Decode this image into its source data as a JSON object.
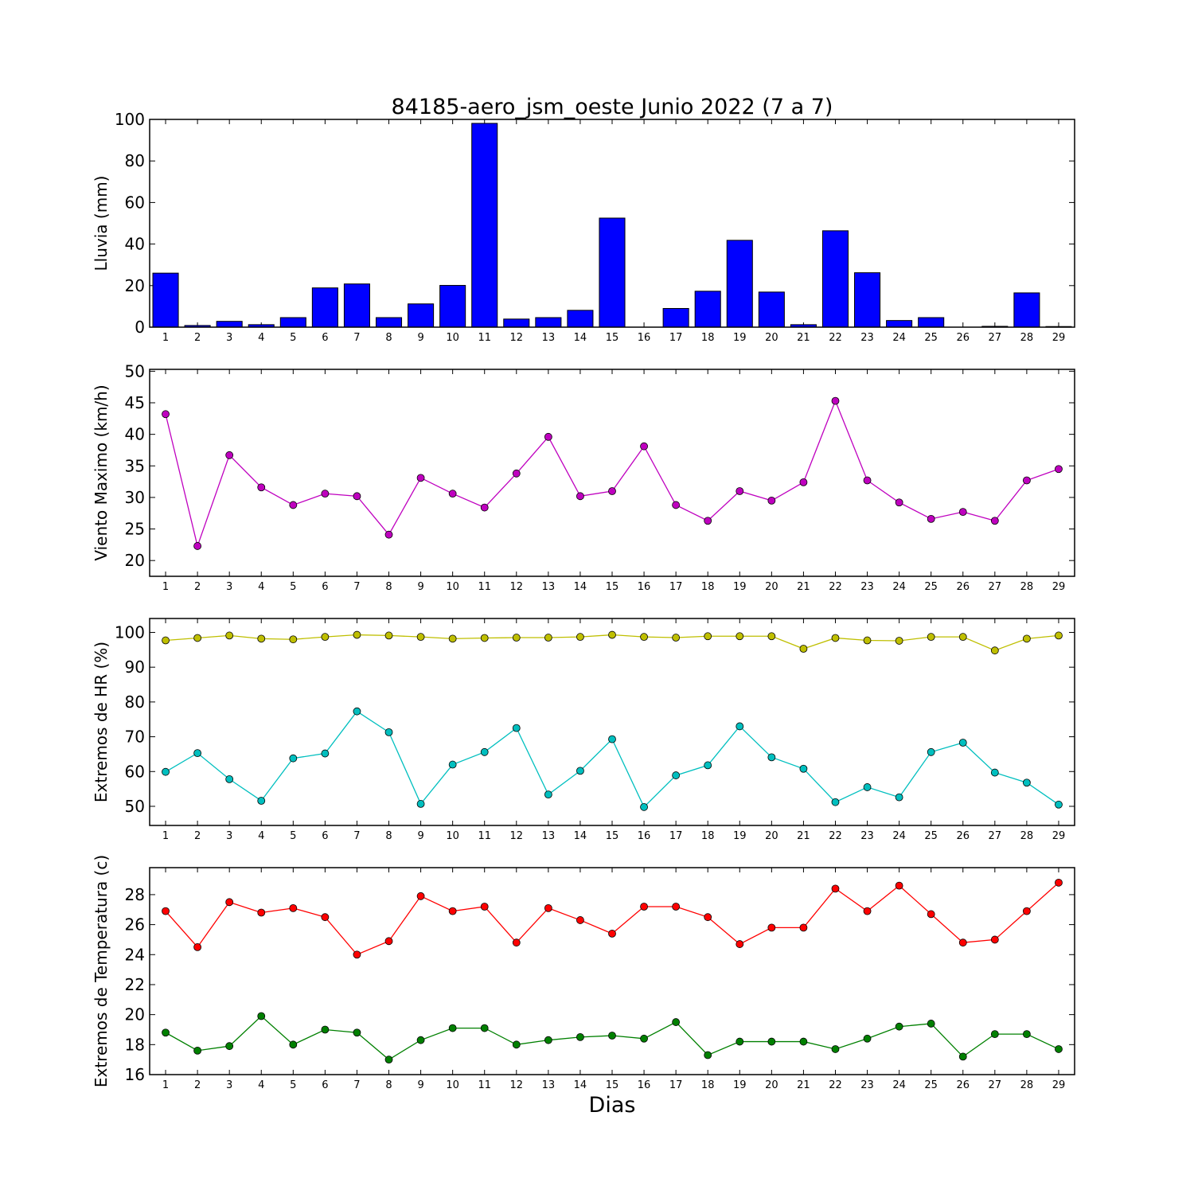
{
  "figure": {
    "title": "84185-aero_jsm_oeste Junio 2022  (7 a 7)",
    "xlabel": "Dias"
  },
  "chart_data": [
    {
      "type": "bar",
      "ylabel": "Lluvia (mm)",
      "ylim": [
        0,
        100
      ],
      "yticks": [
        0,
        20,
        40,
        60,
        80,
        100
      ],
      "categories": [
        1,
        2,
        3,
        4,
        5,
        6,
        7,
        8,
        9,
        10,
        11,
        12,
        13,
        14,
        15,
        16,
        17,
        18,
        19,
        20,
        21,
        22,
        23,
        24,
        25,
        26,
        27,
        28,
        29
      ],
      "series": [
        {
          "color": "#0000ff",
          "values": [
            26,
            0.8,
            2.8,
            1.2,
            4.6,
            18.9,
            20.8,
            4.6,
            11.2,
            20.1,
            98.1,
            3.9,
            4.6,
            8.1,
            52.5,
            0,
            9,
            17.3,
            41.8,
            16.9,
            1.2,
            46.4,
            26.2,
            3.2,
            4.6,
            0,
            0.4,
            16.5,
            0.3
          ]
        }
      ]
    },
    {
      "type": "line",
      "ylabel": "Viento Maximo (km/h)",
      "ylim": [
        17.5,
        50.3
      ],
      "yticks": [
        20,
        25,
        30,
        35,
        40,
        45,
        50
      ],
      "x": [
        1,
        2,
        3,
        4,
        5,
        6,
        7,
        8,
        9,
        10,
        11,
        12,
        13,
        14,
        15,
        16,
        17,
        18,
        19,
        20,
        21,
        22,
        23,
        24,
        25,
        26,
        27,
        28,
        29
      ],
      "series": [
        {
          "color": "#bf00bf",
          "values": [
            43.2,
            22.3,
            36.7,
            31.6,
            28.8,
            30.6,
            30.2,
            24.1,
            33.1,
            30.6,
            28.4,
            33.8,
            39.6,
            30.2,
            31,
            38.1,
            28.8,
            26.3,
            31,
            29.5,
            32.4,
            45.3,
            32.7,
            29.2,
            26.6,
            27.7,
            26.3,
            32.7,
            34.5
          ]
        }
      ]
    },
    {
      "type": "line",
      "ylabel": "Extremos de HR (%)",
      "ylim": [
        44.5,
        104
      ],
      "yticks": [
        50,
        60,
        70,
        80,
        90,
        100
      ],
      "x": [
        1,
        2,
        3,
        4,
        5,
        6,
        7,
        8,
        9,
        10,
        11,
        12,
        13,
        14,
        15,
        16,
        17,
        18,
        19,
        20,
        21,
        22,
        23,
        24,
        25,
        26,
        27,
        28,
        29
      ],
      "series": [
        {
          "color": "#bfbf00",
          "values": [
            97.7,
            98.4,
            99.1,
            98.2,
            98,
            98.7,
            99.3,
            99.1,
            98.7,
            98.2,
            98.4,
            98.5,
            98.5,
            98.7,
            99.3,
            98.7,
            98.5,
            98.9,
            98.9,
            98.9,
            95.3,
            98.4,
            97.7,
            97.6,
            98.7,
            98.7,
            94.8,
            98.2,
            99.1
          ]
        },
        {
          "color": "#00bfbf",
          "values": [
            59.9,
            65.3,
            57.8,
            51.6,
            63.8,
            65.2,
            77.3,
            71.3,
            50.7,
            62,
            65.6,
            72.5,
            53.4,
            60.2,
            69.3,
            49.8,
            58.9,
            61.8,
            73,
            64.1,
            60.8,
            51.2,
            55.5,
            52.6,
            65.6,
            68.3,
            59.7,
            56.8,
            50.5
          ]
        }
      ]
    },
    {
      "type": "line",
      "ylabel": "Extremos de Temperatura (c)",
      "ylim": [
        16,
        29.8
      ],
      "yticks": [
        16,
        18,
        20,
        22,
        24,
        26,
        28
      ],
      "x": [
        1,
        2,
        3,
        4,
        5,
        6,
        7,
        8,
        9,
        10,
        11,
        12,
        13,
        14,
        15,
        16,
        17,
        18,
        19,
        20,
        21,
        22,
        23,
        24,
        25,
        26,
        27,
        28,
        29
      ],
      "series": [
        {
          "color": "#ff0000",
          "values": [
            26.9,
            24.5,
            27.5,
            26.8,
            27.1,
            26.5,
            24,
            24.9,
            27.9,
            26.9,
            27.2,
            24.8,
            27.1,
            26.3,
            25.4,
            27.2,
            27.2,
            26.5,
            24.7,
            25.8,
            25.8,
            28.4,
            26.9,
            28.6,
            26.7,
            24.8,
            25,
            26.9,
            28.8
          ]
        },
        {
          "color": "#008000",
          "values": [
            18.8,
            17.6,
            17.9,
            19.9,
            18,
            19,
            18.8,
            17,
            18.3,
            19.1,
            19.1,
            18,
            18.3,
            18.5,
            18.6,
            18.4,
            19.5,
            17.3,
            18.2,
            18.2,
            18.2,
            17.7,
            18.4,
            19.2,
            19.4,
            17.2,
            18.7,
            18.7,
            17.7
          ]
        }
      ]
    }
  ]
}
